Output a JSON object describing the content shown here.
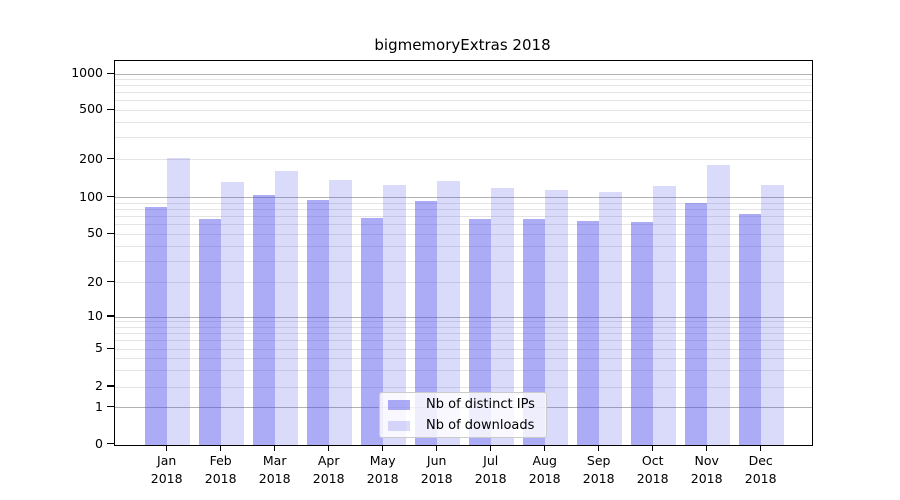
{
  "chart_data": {
    "type": "bar",
    "title": "bigmemoryExtras 2018",
    "categories": [
      "Jan",
      "Feb",
      "Mar",
      "Apr",
      "May",
      "Jun",
      "Jul",
      "Aug",
      "Sep",
      "Oct",
      "Nov",
      "Dec"
    ],
    "category_year": "2018",
    "series": [
      {
        "name": "Nb of distinct IPs",
        "color": "rgba(70,70,235,0.45)",
        "values": [
          85,
          68,
          107,
          97,
          69,
          94,
          68,
          68,
          65,
          64,
          92,
          74
        ]
      },
      {
        "name": "Nb of downloads",
        "color": "rgba(70,70,235,0.20)",
        "values": [
          210,
          135,
          163,
          140,
          128,
          138,
          120,
          116,
          113,
          126,
          183,
          128
        ]
      }
    ],
    "yticks": [
      0,
      1,
      2,
      5,
      10,
      20,
      50,
      100,
      200,
      500,
      1000
    ],
    "strong_grid_at": [
      1,
      10,
      100,
      1000
    ],
    "minor_grid_at": [
      2,
      3,
      4,
      5,
      6,
      7,
      8,
      9,
      20,
      30,
      40,
      50,
      60,
      70,
      80,
      90,
      200,
      300,
      400,
      500,
      600,
      700,
      800,
      900
    ],
    "yscale": "symlog",
    "ylim": [
      0,
      1280
    ],
    "grid": true,
    "legend_position": "lower-center-inside",
    "colors": {
      "bar_ips": "rgba(70,70,235,0.45)",
      "bar_downloads": "rgba(70,70,235,0.20)",
      "grid_strong": "#b2b2b2",
      "grid_minor": "#e4e4e4"
    }
  }
}
